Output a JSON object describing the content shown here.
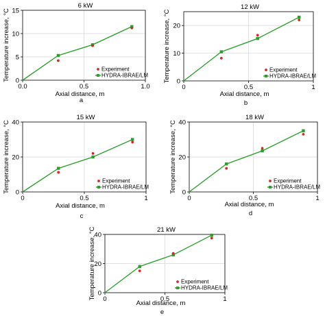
{
  "chart_data": [
    {
      "type": "line",
      "panel_label": "a",
      "title": "6 kW",
      "xlabel": "Axial  distance, m",
      "ylabel": "Temperature increase, °C",
      "xlim": [
        0,
        1.0
      ],
      "ylim": [
        0,
        15
      ],
      "xticks": [
        "0.0",
        "0.5",
        "1.0"
      ],
      "yticks": [
        "0",
        "5",
        "10",
        "15"
      ],
      "grid": true,
      "legend_position": "bottom-right",
      "series": [
        {
          "name": "Experiment",
          "kind": "markers",
          "color": "#d62728",
          "x": [
            0,
            0.29,
            0.57,
            0.89
          ],
          "y": [
            0,
            4.2,
            7.4,
            11.2
          ]
        },
        {
          "name": "HYDRA-IBRAE/LM",
          "kind": "line",
          "color": "#2ca02c",
          "x": [
            0,
            0.29,
            0.57,
            0.89
          ],
          "y": [
            0,
            5.3,
            7.6,
            11.5
          ]
        }
      ]
    },
    {
      "type": "line",
      "panel_label": "b",
      "title": "12 kW",
      "xlabel": "Axial  distance, m",
      "ylabel": "Temperature increase, °C",
      "xlim": [
        0,
        1.0
      ],
      "ylim": [
        0,
        25
      ],
      "xticks": [
        "0",
        "0.5",
        "1"
      ],
      "yticks": [
        "0",
        "10",
        "20"
      ],
      "grid": true,
      "legend_position": "bottom-right",
      "series": [
        {
          "name": "Experiment",
          "kind": "markers",
          "color": "#d62728",
          "x": [
            0,
            0.29,
            0.57,
            0.89
          ],
          "y": [
            0,
            8.2,
            16.5,
            22
          ]
        },
        {
          "name": "HYDRA-IBRAE/LM",
          "kind": "line",
          "color": "#2ca02c",
          "x": [
            0,
            0.29,
            0.57,
            0.89
          ],
          "y": [
            0,
            10.5,
            15.3,
            23
          ]
        }
      ]
    },
    {
      "type": "line",
      "panel_label": "c",
      "title": "15 kW",
      "xlabel": "Axial  distance, m",
      "ylabel": "Temperature increase, °C",
      "xlim": [
        0,
        1.0
      ],
      "ylim": [
        0,
        40
      ],
      "xticks": [
        "0",
        "0.5",
        "1"
      ],
      "yticks": [
        "0",
        "20",
        "40"
      ],
      "grid": true,
      "legend_position": "bottom-right",
      "series": [
        {
          "name": "Experiment",
          "kind": "markers",
          "color": "#d62728",
          "x": [
            0,
            0.29,
            0.57,
            0.89
          ],
          "y": [
            0,
            11.2,
            22,
            28.5
          ]
        },
        {
          "name": "HYDRA-IBRAE/LM",
          "kind": "line",
          "color": "#2ca02c",
          "x": [
            0,
            0.29,
            0.57,
            0.89
          ],
          "y": [
            0,
            13.5,
            20,
            30
          ]
        }
      ]
    },
    {
      "type": "line",
      "panel_label": "d",
      "title": "18 kW",
      "xlabel": "Axial  distance, m",
      "ylabel": "Temperature increase, °C",
      "xlim": [
        0,
        1.0
      ],
      "ylim": [
        0,
        40
      ],
      "xticks": [
        "0",
        "0.5",
        "1"
      ],
      "yticks": [
        "0",
        "20",
        "40"
      ],
      "grid": true,
      "legend_position": "bottom-right",
      "series": [
        {
          "name": "Experiment",
          "kind": "markers",
          "color": "#d62728",
          "x": [
            0,
            0.29,
            0.57,
            0.89
          ],
          "y": [
            0,
            13.5,
            25,
            33
          ]
        },
        {
          "name": "HYDRA-IBRAE/LM",
          "kind": "line",
          "color": "#2ca02c",
          "x": [
            0,
            0.29,
            0.57,
            0.89
          ],
          "y": [
            0,
            16,
            23.5,
            35
          ]
        }
      ]
    },
    {
      "type": "line",
      "panel_label": "e",
      "title": "21 kW",
      "xlabel": "Axial  distance, m",
      "ylabel": "Temperature increase, °C",
      "xlim": [
        0,
        1.0
      ],
      "ylim": [
        0,
        40
      ],
      "xticks": [
        "0",
        "0.5",
        "1"
      ],
      "yticks": [
        "0",
        "20",
        "40"
      ],
      "grid": true,
      "legend_position": "bottom-right",
      "series": [
        {
          "name": "Experiment",
          "kind": "markers",
          "color": "#d62728",
          "x": [
            0,
            0.29,
            0.57,
            0.89
          ],
          "y": [
            0,
            15,
            27,
            37.5
          ]
        },
        {
          "name": "HYDRA-IBRAE/LM",
          "kind": "line",
          "color": "#2ca02c",
          "x": [
            0,
            0.29,
            0.57,
            0.89
          ],
          "y": [
            0,
            18,
            26,
            39.5
          ]
        }
      ]
    }
  ]
}
